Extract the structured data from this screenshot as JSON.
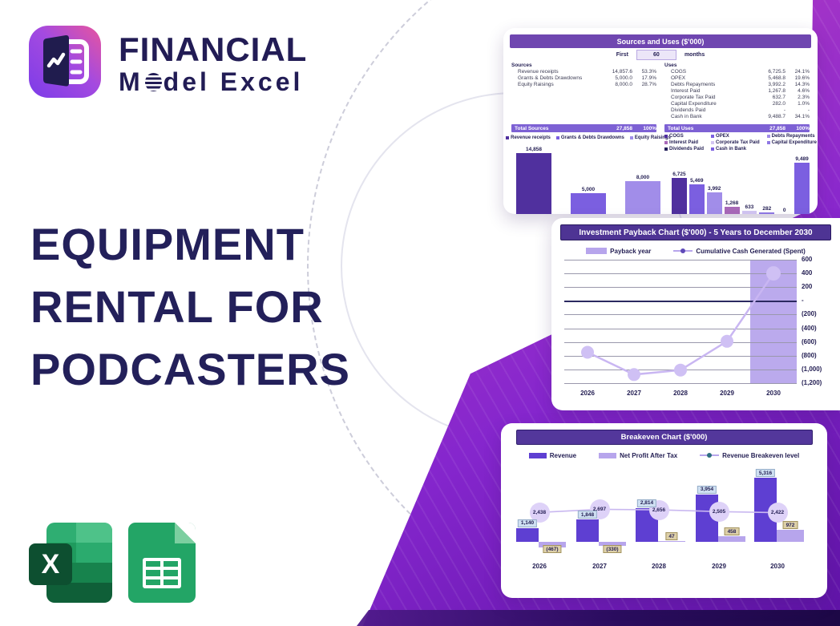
{
  "brand": {
    "line1": "FINANCIAL",
    "line2_pre": "M",
    "line2_post": "del Excel"
  },
  "headline": {
    "line1": "EQUIPMENT",
    "line2": "RENTAL FOR",
    "line3": "PODCASTERS"
  },
  "icons": {
    "logo": "book-chart-logo-icon",
    "gear": "gear-o-icon",
    "excel": "excel-icon",
    "excel_letter": "X",
    "sheets": "google-sheets-icon"
  },
  "colors": {
    "accent_navy": "#221d52",
    "header_purple": "#53379b",
    "gradient_magenta": "#cf43ab",
    "gradient_purple": "#6f1bb0",
    "total_row": "#7d61d4"
  },
  "sources_uses": {
    "title": "Sources and Uses ($'000)",
    "period_prefix": "First",
    "period_value": "60",
    "period_suffix": "months",
    "sources": {
      "header": "Sources",
      "rows": [
        [
          "Revenue receipts",
          "14,857.6",
          "53.3%"
        ],
        [
          "Grants & Debts Drawdowns",
          "5,000.0",
          "17.9%"
        ],
        [
          "Equity Raisings",
          "8,000.0",
          "28.7%"
        ]
      ],
      "total_label": "Total Sources",
      "total_value": "27,858",
      "total_pct": "100%"
    },
    "uses": {
      "header": "Uses",
      "rows": [
        [
          "COGS",
          "6,725.5",
          "24.1%"
        ],
        [
          "OPEX",
          "5,468.8",
          "19.6%"
        ],
        [
          "Debts Repayments",
          "3,992.2",
          "14.3%"
        ],
        [
          "Interest Paid",
          "1,267.8",
          "4.6%"
        ],
        [
          "Corporate Tax Paid",
          "632.7",
          "2.3%"
        ],
        [
          "Capital Expenditure",
          "282.0",
          "1.0%"
        ],
        [
          "Dividends Paid",
          "-",
          "-"
        ],
        [
          "Cash in Bank",
          "9,488.7",
          "34.1%"
        ]
      ],
      "total_label": "Total Uses",
      "total_value": "27,858",
      "total_pct": "100%"
    }
  },
  "payback": {
    "title": "Investment Payback Chart ($'000) - 5 Years to December 2030",
    "legend_bar": "Payback year",
    "legend_line": "Cumulative Cash Generated (Spent)"
  },
  "breakeven": {
    "title": "Breakeven Chart ($'000)",
    "legend": [
      "Revenue",
      "Net Profit After Tax",
      "Revenue Breakeven level"
    ]
  },
  "chart_data": [
    {
      "id": "sources",
      "type": "bar",
      "title": "Sources ($'000)",
      "categories": [
        "Revenue receipts",
        "Grants & Debts Drawdowns",
        "Equity Raisings"
      ],
      "values": [
        14858,
        5000,
        8000
      ],
      "value_labels": [
        "14,858",
        "5,000",
        "8,000"
      ],
      "colors": [
        "#50309e",
        "#7b5fe0",
        "#a18de9"
      ],
      "legend_position": "top",
      "grid": false
    },
    {
      "id": "uses",
      "type": "bar",
      "title": "Uses ($'000)",
      "categories": [
        "COGS",
        "OPEX",
        "Debts Repayments",
        "Interest Paid",
        "Corporate Tax Paid",
        "Capital Expenditure",
        "Dividends Paid",
        "Cash in Bank"
      ],
      "values": [
        6725,
        5469,
        3992,
        1268,
        633,
        282,
        0,
        9489
      ],
      "value_labels": [
        "6,725",
        "5,469",
        "3,992",
        "1,268",
        "633",
        "282",
        "0",
        "9,489"
      ],
      "colors": [
        "#50309e",
        "#7b5fe0",
        "#a18de9",
        "#a868b8",
        "#d3c6f2",
        "#8f78e4",
        "#23205a",
        "#7b5fe0"
      ],
      "legend_position": "top",
      "grid": false
    },
    {
      "id": "payback",
      "type": "combo",
      "title": "Investment Payback Chart ($'000) - 5 Years to December 2030",
      "categories": [
        "2026",
        "2027",
        "2028",
        "2029",
        "2030"
      ],
      "series": [
        {
          "name": "Payback year",
          "type": "column-highlight",
          "highlight_category": "2030",
          "color": "#b5a3ec"
        },
        {
          "name": "Cumulative Cash Generated (Spent)",
          "type": "line",
          "values": [
            -750,
            -1075,
            -1010,
            -590,
            400
          ],
          "color": "#c9b6f2"
        }
      ],
      "y_ticks": [
        "600",
        "400",
        "200",
        "-",
        "(200)",
        "(400)",
        "(600)",
        "(800)",
        "(1,000)",
        "(1,200)"
      ],
      "ylim": [
        -1200,
        600
      ],
      "grid": true,
      "legend_position": "top"
    },
    {
      "id": "breakeven",
      "type": "combo",
      "title": "Breakeven Chart ($'000)",
      "categories": [
        "2026",
        "2027",
        "2028",
        "2029",
        "2030"
      ],
      "series": [
        {
          "name": "Revenue",
          "type": "bar",
          "values": [
            1140,
            1848,
            2814,
            3954,
            5316
          ],
          "labels": [
            "1,140",
            "1,848",
            "2,814",
            "3,954",
            "5,316"
          ],
          "color": "#5e3fd2"
        },
        {
          "name": "Net Profit After Tax",
          "type": "bar",
          "values": [
            -467,
            -330,
            47,
            458,
            972
          ],
          "labels": [
            "(467)",
            "(330)",
            "47",
            "458",
            "972"
          ],
          "color": "#b7a5ec"
        },
        {
          "name": "Revenue Breakeven level",
          "type": "line",
          "values": [
            2438,
            2697,
            2656,
            2505,
            2422
          ],
          "labels": [
            "2,438",
            "2,697",
            "2,656",
            "2,505",
            "2,422"
          ],
          "color": "#c9b8f0"
        }
      ],
      "ylim": [
        -600,
        5500
      ],
      "grid": false,
      "legend_position": "top"
    }
  ]
}
